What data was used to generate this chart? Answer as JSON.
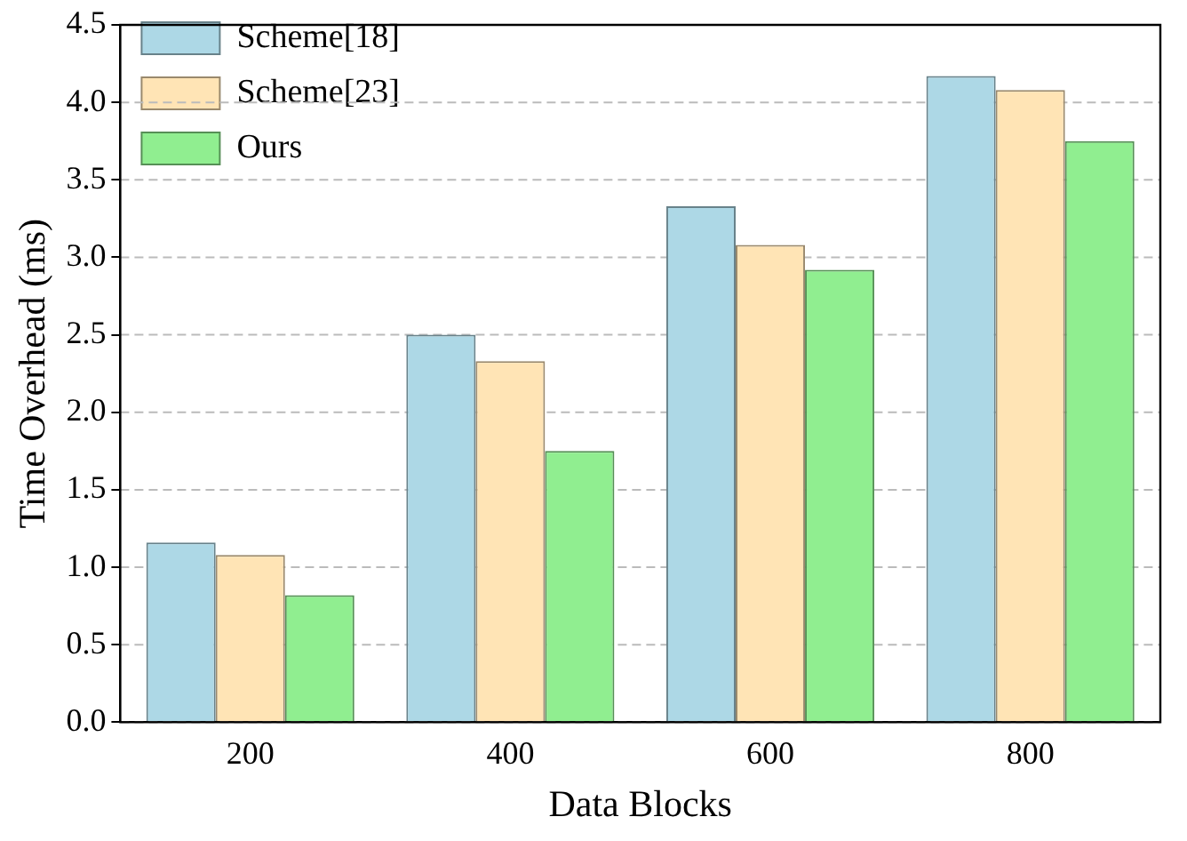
{
  "chart_data": {
    "type": "bar",
    "xlabel": "Data Blocks",
    "ylabel": "Time Overhead (ms)",
    "categories": [
      "200",
      "400",
      "600",
      "800"
    ],
    "series": [
      {
        "name": "Scheme[18]",
        "color": "#add8e6",
        "values": [
          1.16,
          2.5,
          3.33,
          4.17
        ]
      },
      {
        "name": "Scheme[23]",
        "color": "#ffe4b5",
        "values": [
          1.08,
          2.33,
          3.08,
          4.08
        ]
      },
      {
        "name": "Ours",
        "color": "#90ee90",
        "values": [
          0.82,
          1.75,
          2.92,
          3.75
        ]
      }
    ],
    "ylim": [
      0,
      4.5
    ],
    "yticks": [
      {
        "value": 0,
        "label": "0.0"
      },
      0.5,
      {
        "value": 1,
        "label": "1.0"
      },
      1.5,
      {
        "value": 2,
        "label": "2.0"
      },
      2.5,
      {
        "value": 3,
        "label": "3.0"
      },
      3.5,
      {
        "value": 4,
        "label": "4.0"
      },
      4.5
    ],
    "grid": "y",
    "legend": "top left"
  }
}
